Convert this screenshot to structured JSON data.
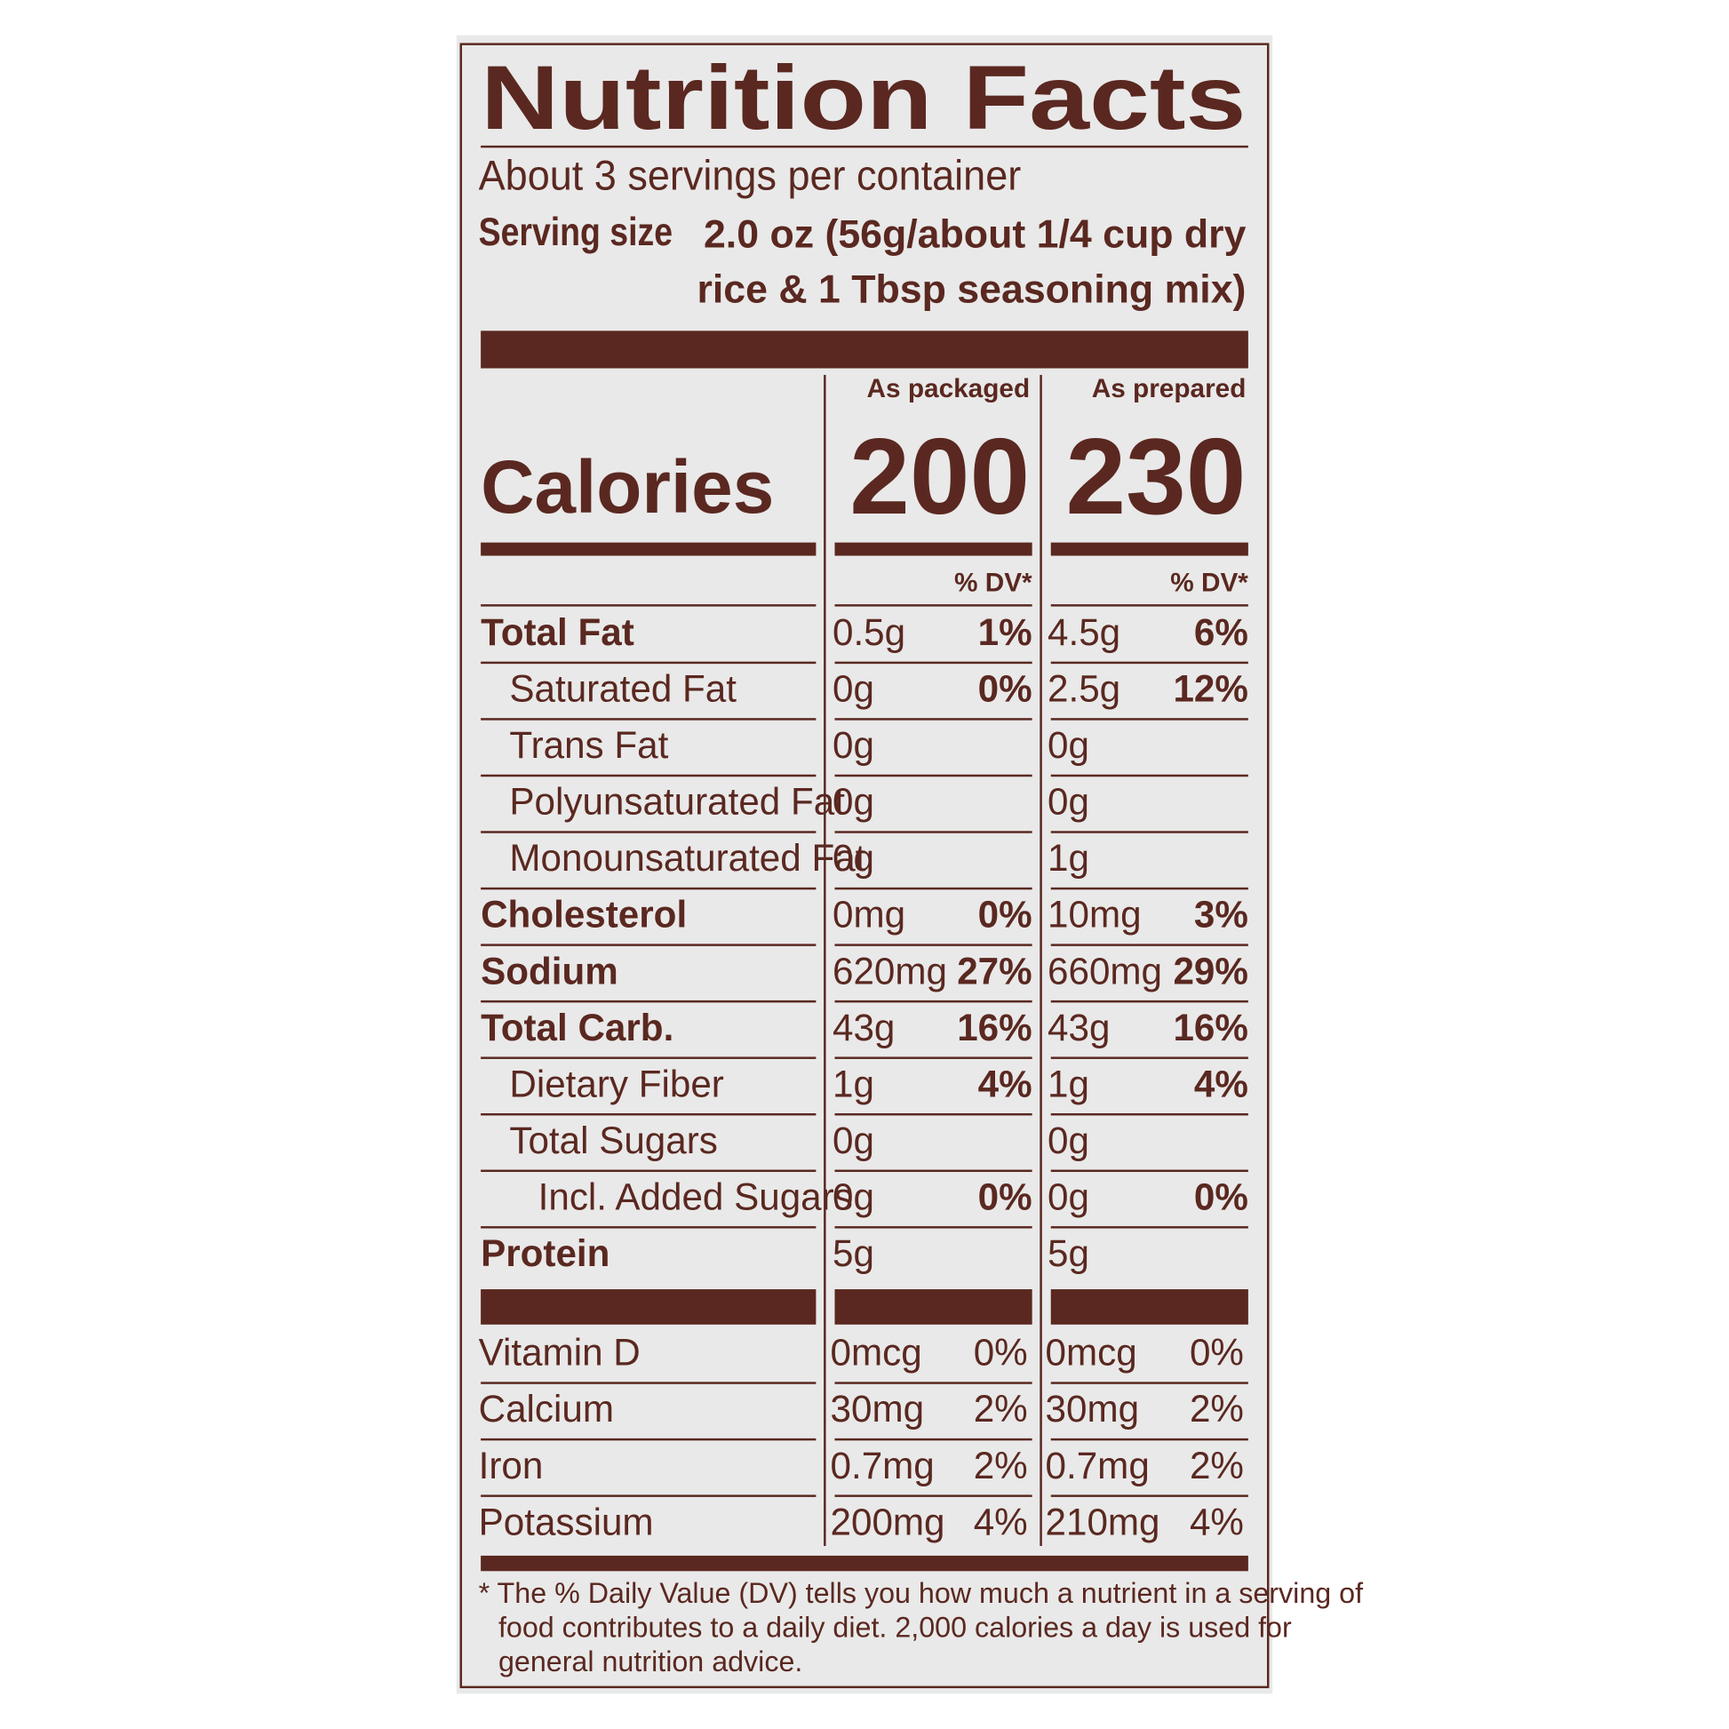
{
  "header": {
    "title": "Nutrition Facts",
    "servings": "About 3 servings per container",
    "serving_size_label": "Serving size",
    "serving_size_value": [
      "2.0 oz (56g/about 1/4 cup dry",
      "rice & 1 Tbsp seasoning mix)"
    ]
  },
  "calories_label": "Calories",
  "columns": [
    {
      "heading": "As packaged",
      "calories": "200",
      "dv_header": "% DV*"
    },
    {
      "heading": "As prepared",
      "calories": "230",
      "dv_header": "% DV*"
    }
  ],
  "nutrients": [
    {
      "name": "Total Fat",
      "bold": true,
      "level": 0,
      "amounts": [
        [
          "0.5g",
          "1%"
        ],
        [
          "4.5g",
          "6%"
        ]
      ]
    },
    {
      "name": "Saturated Fat",
      "bold": false,
      "level": 1,
      "amounts": [
        [
          "0g",
          "0%"
        ],
        [
          "2.5g",
          "12%"
        ]
      ]
    },
    {
      "name": "Trans Fat",
      "bold": false,
      "level": 1,
      "amounts": [
        [
          "0g",
          null
        ],
        [
          "0g",
          null
        ]
      ]
    },
    {
      "name": "Polyunsaturated Fat",
      "bold": false,
      "level": 1,
      "amounts": [
        [
          "0g",
          null
        ],
        [
          "0g",
          null
        ]
      ]
    },
    {
      "name": "Monounsaturated Fat",
      "bold": false,
      "level": 1,
      "amounts": [
        [
          "0g",
          null
        ],
        [
          "1g",
          null
        ]
      ]
    },
    {
      "name": "Cholesterol",
      "bold": true,
      "level": 0,
      "amounts": [
        [
          "0mg",
          "0%"
        ],
        [
          "10mg",
          "3%"
        ]
      ]
    },
    {
      "name": "Sodium",
      "bold": true,
      "level": 0,
      "amounts": [
        [
          "620mg",
          "27%"
        ],
        [
          "660mg",
          "29%"
        ]
      ]
    },
    {
      "name": "Total Carb.",
      "bold": true,
      "level": 0,
      "amounts": [
        [
          "43g",
          "16%"
        ],
        [
          "43g",
          "16%"
        ]
      ]
    },
    {
      "name": "Dietary Fiber",
      "bold": false,
      "level": 1,
      "amounts": [
        [
          "1g",
          "4%"
        ],
        [
          "1g",
          "4%"
        ]
      ]
    },
    {
      "name": "Total Sugars",
      "bold": false,
      "level": 1,
      "amounts": [
        [
          "0g",
          null
        ],
        [
          "0g",
          null
        ]
      ]
    },
    {
      "name": "Incl. Added Sugars",
      "bold": false,
      "level": 2,
      "amounts": [
        [
          "0g",
          "0%"
        ],
        [
          "0g",
          "0%"
        ]
      ]
    },
    {
      "name": "Protein",
      "bold": true,
      "level": 0,
      "amounts": [
        [
          "5g",
          null
        ],
        [
          "5g",
          null
        ]
      ]
    }
  ],
  "vitamins": [
    {
      "name": "Vitamin D",
      "amounts": [
        [
          "0mcg",
          "0%"
        ],
        [
          "0mcg",
          "0%"
        ]
      ]
    },
    {
      "name": "Calcium",
      "amounts": [
        [
          "30mg",
          "2%"
        ],
        [
          "30mg",
          "2%"
        ]
      ]
    },
    {
      "name": "Iron",
      "amounts": [
        [
          "0.7mg",
          "2%"
        ],
        [
          "0.7mg",
          "2%"
        ]
      ]
    },
    {
      "name": "Potassium",
      "amounts": [
        [
          "200mg",
          "4%"
        ],
        [
          "210mg",
          "4%"
        ]
      ]
    }
  ],
  "footnote": [
    "* The % Daily Value (DV) tells you how much a nutrient in a serving of",
    "food contributes to a daily diet. 2,000 calories a day is used for",
    "general nutrition advice."
  ]
}
